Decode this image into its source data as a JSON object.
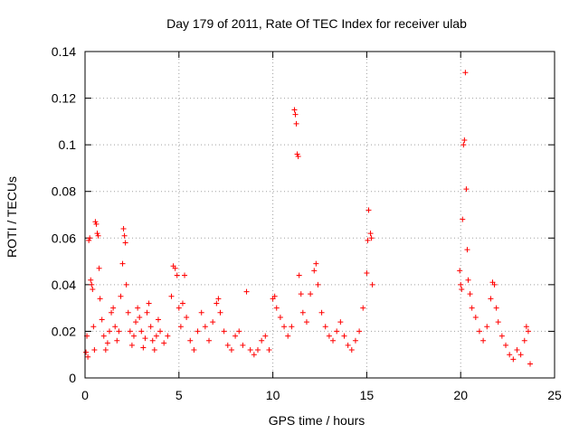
{
  "chart_data": {
    "type": "scatter",
    "title": "Day 179 of 2011, Rate Of TEC Index for receiver ulab",
    "xlabel": "GPS time / hours",
    "ylabel": "ROTI / TECUs",
    "xlim": [
      0,
      25
    ],
    "ylim": [
      0,
      0.14
    ],
    "xticks": [
      0,
      5,
      10,
      15,
      20,
      25
    ],
    "xtick_labels": [
      "0",
      "5",
      "10",
      "15",
      "20",
      "25"
    ],
    "yticks": [
      0,
      0.02,
      0.04,
      0.06,
      0.08,
      0.1,
      0.12,
      0.14
    ],
    "ytick_labels": [
      "0",
      "0.02",
      "0.04",
      "0.06",
      "0.08",
      "0.1",
      "0.12",
      "0.14"
    ],
    "grid": true,
    "marker": "+",
    "color": "#ff0000",
    "series": [
      {
        "name": "ROTI",
        "points": [
          [
            0.05,
            0.011
          ],
          [
            0.1,
            0.018
          ],
          [
            0.15,
            0.009
          ],
          [
            0.2,
            0.059
          ],
          [
            0.25,
            0.06
          ],
          [
            0.3,
            0.042
          ],
          [
            0.35,
            0.04
          ],
          [
            0.4,
            0.038
          ],
          [
            0.45,
            0.022
          ],
          [
            0.5,
            0.012
          ],
          [
            0.55,
            0.067
          ],
          [
            0.6,
            0.066
          ],
          [
            0.65,
            0.062
          ],
          [
            0.7,
            0.061
          ],
          [
            0.75,
            0.047
          ],
          [
            0.8,
            0.034
          ],
          [
            0.9,
            0.025
          ],
          [
            1.0,
            0.018
          ],
          [
            1.1,
            0.012
          ],
          [
            1.2,
            0.015
          ],
          [
            1.3,
            0.02
          ],
          [
            1.4,
            0.028
          ],
          [
            1.5,
            0.03
          ],
          [
            1.6,
            0.022
          ],
          [
            1.7,
            0.016
          ],
          [
            1.8,
            0.02
          ],
          [
            1.9,
            0.035
          ],
          [
            2.0,
            0.049
          ],
          [
            2.05,
            0.064
          ],
          [
            2.1,
            0.061
          ],
          [
            2.15,
            0.058
          ],
          [
            2.2,
            0.04
          ],
          [
            2.3,
            0.028
          ],
          [
            2.4,
            0.02
          ],
          [
            2.5,
            0.014
          ],
          [
            2.6,
            0.018
          ],
          [
            2.7,
            0.024
          ],
          [
            2.8,
            0.03
          ],
          [
            2.9,
            0.026
          ],
          [
            3.0,
            0.02
          ],
          [
            3.1,
            0.013
          ],
          [
            3.2,
            0.017
          ],
          [
            3.3,
            0.028
          ],
          [
            3.4,
            0.032
          ],
          [
            3.5,
            0.022
          ],
          [
            3.6,
            0.016
          ],
          [
            3.7,
            0.012
          ],
          [
            3.8,
            0.018
          ],
          [
            3.9,
            0.025
          ],
          [
            4.0,
            0.02
          ],
          [
            4.2,
            0.015
          ],
          [
            4.4,
            0.018
          ],
          [
            4.6,
            0.035
          ],
          [
            4.7,
            0.048
          ],
          [
            4.8,
            0.047
          ],
          [
            4.9,
            0.044
          ],
          [
            5.0,
            0.03
          ],
          [
            5.1,
            0.022
          ],
          [
            5.2,
            0.032
          ],
          [
            5.3,
            0.044
          ],
          [
            5.4,
            0.026
          ],
          [
            5.6,
            0.016
          ],
          [
            5.8,
            0.012
          ],
          [
            6.0,
            0.02
          ],
          [
            6.2,
            0.028
          ],
          [
            6.4,
            0.022
          ],
          [
            6.6,
            0.016
          ],
          [
            6.8,
            0.024
          ],
          [
            7.0,
            0.032
          ],
          [
            7.1,
            0.034
          ],
          [
            7.2,
            0.028
          ],
          [
            7.4,
            0.02
          ],
          [
            7.6,
            0.014
          ],
          [
            7.8,
            0.012
          ],
          [
            8.0,
            0.018
          ],
          [
            8.2,
            0.02
          ],
          [
            8.4,
            0.014
          ],
          [
            8.6,
            0.037
          ],
          [
            8.8,
            0.012
          ],
          [
            9.0,
            0.01
          ],
          [
            9.2,
            0.012
          ],
          [
            9.4,
            0.016
          ],
          [
            9.6,
            0.018
          ],
          [
            9.8,
            0.012
          ],
          [
            10.0,
            0.034
          ],
          [
            10.1,
            0.035
          ],
          [
            10.2,
            0.03
          ],
          [
            10.4,
            0.026
          ],
          [
            10.6,
            0.022
          ],
          [
            10.8,
            0.018
          ],
          [
            11.0,
            0.022
          ],
          [
            11.15,
            0.115
          ],
          [
            11.2,
            0.113
          ],
          [
            11.25,
            0.109
          ],
          [
            11.3,
            0.096
          ],
          [
            11.35,
            0.095
          ],
          [
            11.4,
            0.044
          ],
          [
            11.5,
            0.036
          ],
          [
            11.6,
            0.028
          ],
          [
            11.8,
            0.024
          ],
          [
            12.0,
            0.036
          ],
          [
            12.2,
            0.046
          ],
          [
            12.3,
            0.049
          ],
          [
            12.4,
            0.04
          ],
          [
            12.6,
            0.028
          ],
          [
            12.8,
            0.022
          ],
          [
            13.0,
            0.018
          ],
          [
            13.2,
            0.016
          ],
          [
            13.4,
            0.02
          ],
          [
            13.6,
            0.024
          ],
          [
            13.8,
            0.018
          ],
          [
            14.0,
            0.014
          ],
          [
            14.2,
            0.012
          ],
          [
            14.4,
            0.016
          ],
          [
            14.6,
            0.02
          ],
          [
            14.8,
            0.03
          ],
          [
            15.0,
            0.045
          ],
          [
            15.05,
            0.059
          ],
          [
            15.1,
            0.072
          ],
          [
            15.2,
            0.062
          ],
          [
            15.25,
            0.06
          ],
          [
            15.3,
            0.04
          ],
          [
            19.95,
            0.046
          ],
          [
            20.0,
            0.04
          ],
          [
            20.05,
            0.038
          ],
          [
            20.1,
            0.068
          ],
          [
            20.15,
            0.1
          ],
          [
            20.2,
            0.102
          ],
          [
            20.25,
            0.131
          ],
          [
            20.3,
            0.081
          ],
          [
            20.35,
            0.055
          ],
          [
            20.4,
            0.042
          ],
          [
            20.5,
            0.036
          ],
          [
            20.6,
            0.03
          ],
          [
            20.8,
            0.026
          ],
          [
            21.0,
            0.02
          ],
          [
            21.2,
            0.016
          ],
          [
            21.4,
            0.022
          ],
          [
            21.6,
            0.034
          ],
          [
            21.7,
            0.041
          ],
          [
            21.8,
            0.04
          ],
          [
            21.9,
            0.03
          ],
          [
            22.0,
            0.024
          ],
          [
            22.2,
            0.018
          ],
          [
            22.4,
            0.014
          ],
          [
            22.6,
            0.01
          ],
          [
            22.8,
            0.008
          ],
          [
            23.0,
            0.012
          ],
          [
            23.2,
            0.01
          ],
          [
            23.4,
            0.016
          ],
          [
            23.5,
            0.022
          ],
          [
            23.6,
            0.02
          ],
          [
            23.7,
            0.006
          ]
        ]
      }
    ]
  }
}
